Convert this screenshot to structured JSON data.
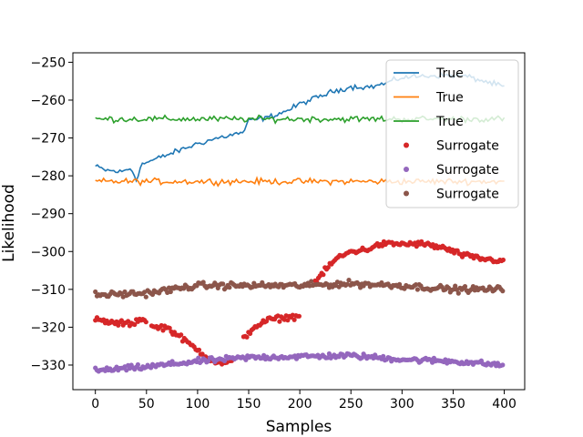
{
  "chart_data": {
    "type": "line",
    "xlabel": "Samples",
    "ylabel": "Likelihood",
    "xlim": [
      -22,
      420
    ],
    "ylim": [
      -336.5,
      -247.5
    ],
    "xticks": [
      0,
      50,
      100,
      150,
      200,
      250,
      300,
      350,
      400
    ],
    "yticks": [
      -330,
      -320,
      -310,
      -300,
      -290,
      -280,
      -270,
      -260,
      -250
    ],
    "grid": false,
    "legend_position": "top-right",
    "legend": [
      "True",
      "True",
      "True",
      "Surrogate",
      "Surrogate",
      "Surrogate"
    ],
    "series": [
      {
        "name": "True",
        "kind": "line",
        "color": "#1f77b4",
        "anchors": [
          [
            0,
            -277.5
          ],
          [
            10,
            -278.5
          ],
          [
            25,
            -279
          ],
          [
            35,
            -278
          ],
          [
            40,
            -281
          ],
          [
            45,
            -277
          ],
          [
            60,
            -275.5
          ],
          [
            80,
            -273.5
          ],
          [
            100,
            -271.5
          ],
          [
            120,
            -270
          ],
          [
            145,
            -268.5
          ],
          [
            150,
            -265.5
          ],
          [
            170,
            -264.5
          ],
          [
            190,
            -262.5
          ],
          [
            200,
            -261
          ],
          [
            210,
            -260
          ],
          [
            220,
            -259
          ],
          [
            235,
            -257.5
          ],
          [
            250,
            -256.5
          ],
          [
            270,
            -256.5
          ],
          [
            285,
            -255.5
          ],
          [
            300,
            -254
          ],
          [
            330,
            -253.5
          ],
          [
            360,
            -253.5
          ],
          [
            380,
            -255
          ],
          [
            400,
            -256.5
          ]
        ],
        "noise": 0.7
      },
      {
        "name": "True",
        "kind": "line",
        "color": "#ff7f0e",
        "anchors": [
          [
            0,
            -281.5
          ],
          [
            400,
            -281.5
          ]
        ],
        "noise": 0.8
      },
      {
        "name": "True",
        "kind": "line",
        "color": "#2ca02c",
        "anchors": [
          [
            0,
            -265
          ],
          [
            400,
            -265
          ]
        ],
        "noise": 0.8
      },
      {
        "name": "Surrogate",
        "kind": "scatter",
        "color": "#d62728",
        "segments": [
          {
            "x": [
              0,
              40
            ],
            "anchors": [
              [
                0,
                -318
              ],
              [
                20,
                -319
              ],
              [
                40,
                -319
              ]
            ]
          },
          {
            "x": [
              40,
              50
            ],
            "anchors": [
              [
                40,
                -318
              ],
              [
                50,
                -318
              ]
            ]
          },
          {
            "x": [
              55,
              135
            ],
            "anchors": [
              [
                55,
                -320
              ],
              [
                70,
                -320
              ],
              [
                80,
                -322
              ],
              [
                90,
                -324
              ],
              [
                100,
                -326
              ],
              [
                110,
                -328
              ],
              [
                120,
                -329.5
              ],
              [
                135,
                -329
              ]
            ]
          },
          {
            "x": [
              145,
              200
            ],
            "anchors": [
              [
                145,
                -323
              ],
              [
                155,
                -320
              ],
              [
                170,
                -318
              ],
              [
                185,
                -317.5
              ],
              [
                200,
                -317
              ]
            ]
          },
          {
            "x": [
              215,
              400
            ],
            "anchors": [
              [
                215,
                -308
              ],
              [
                225,
                -305
              ],
              [
                235,
                -302
              ],
              [
                250,
                -300
              ],
              [
                265,
                -299.5
              ],
              [
                280,
                -298
              ],
              [
                300,
                -298
              ],
              [
                320,
                -298
              ],
              [
                340,
                -299
              ],
              [
                360,
                -301
              ],
              [
                380,
                -302
              ],
              [
                400,
                -302.5
              ]
            ]
          }
        ],
        "noise": 0.7
      },
      {
        "name": "Surrogate",
        "kind": "scatter",
        "color": "#9467bd",
        "segments": [
          {
            "x": [
              0,
              400
            ],
            "anchors": [
              [
                0,
                -331.5
              ],
              [
                50,
                -330.5
              ],
              [
                100,
                -329
              ],
              [
                150,
                -328
              ],
              [
                250,
                -327.5
              ],
              [
                300,
                -328.5
              ],
              [
                350,
                -329
              ],
              [
                400,
                -330
              ]
            ]
          }
        ],
        "noise": 0.7
      },
      {
        "name": "Surrogate",
        "kind": "scatter",
        "color": "#8c564b",
        "segments": [
          {
            "x": [
              0,
              400
            ],
            "anchors": [
              [
                0,
                -311.5
              ],
              [
                50,
                -311
              ],
              [
                100,
                -309
              ],
              [
                150,
                -309
              ],
              [
                200,
                -309
              ],
              [
                250,
                -308.5
              ],
              [
                300,
                -309
              ],
              [
                350,
                -310
              ],
              [
                400,
                -310
              ]
            ]
          }
        ],
        "noise": 0.8
      }
    ]
  }
}
